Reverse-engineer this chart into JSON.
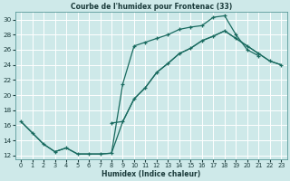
{
  "title": "Courbe de l'humidex pour Frontenac (33)",
  "xlabel": "Humidex (Indice chaleur)",
  "bg_color": "#cee9e9",
  "grid_color": "#ffffff",
  "line_color": "#1a6b60",
  "xlim": [
    -0.5,
    23.5
  ],
  "ylim": [
    11.5,
    31.0
  ],
  "xticks": [
    0,
    1,
    2,
    3,
    4,
    5,
    6,
    7,
    8,
    9,
    10,
    11,
    12,
    13,
    14,
    15,
    16,
    17,
    18,
    19,
    20,
    21,
    22,
    23
  ],
  "yticks": [
    12,
    14,
    16,
    18,
    20,
    22,
    24,
    26,
    28,
    30
  ],
  "line1_x": [
    0,
    1,
    2,
    3,
    4,
    5,
    6,
    7,
    8,
    9,
    10,
    11,
    12,
    13,
    14,
    15,
    16,
    17,
    18,
    19,
    20,
    21
  ],
  "line1_y": [
    16.5,
    15.0,
    13.5,
    12.5,
    13.0,
    12.2,
    12.2,
    12.2,
    12.3,
    21.5,
    26.5,
    27.0,
    27.5,
    28.0,
    28.7,
    29.0,
    29.2,
    30.3,
    30.5,
    28.0,
    26.0,
    25.2
  ],
  "line2_x": [
    8,
    9,
    10,
    11,
    12,
    13,
    14,
    15,
    16,
    17,
    18,
    19,
    20,
    21,
    22,
    23
  ],
  "line2_y": [
    16.3,
    16.5,
    19.5,
    21.0,
    23.0,
    24.2,
    25.5,
    26.2,
    27.2,
    27.8,
    28.5,
    27.5,
    26.5,
    25.5,
    24.5,
    24.0
  ],
  "line3_x": [
    0,
    1,
    2,
    3,
    4,
    5,
    6,
    7,
    8,
    9,
    10,
    11,
    12,
    13,
    14,
    15,
    16,
    17,
    18,
    19,
    20,
    21,
    22,
    23
  ],
  "line3_y": [
    16.5,
    15.0,
    13.5,
    12.5,
    13.0,
    12.2,
    12.2,
    12.2,
    12.3,
    16.5,
    19.5,
    21.0,
    23.0,
    24.2,
    25.5,
    26.2,
    27.2,
    27.8,
    28.5,
    27.5,
    26.5,
    25.5,
    24.5,
    24.0
  ]
}
